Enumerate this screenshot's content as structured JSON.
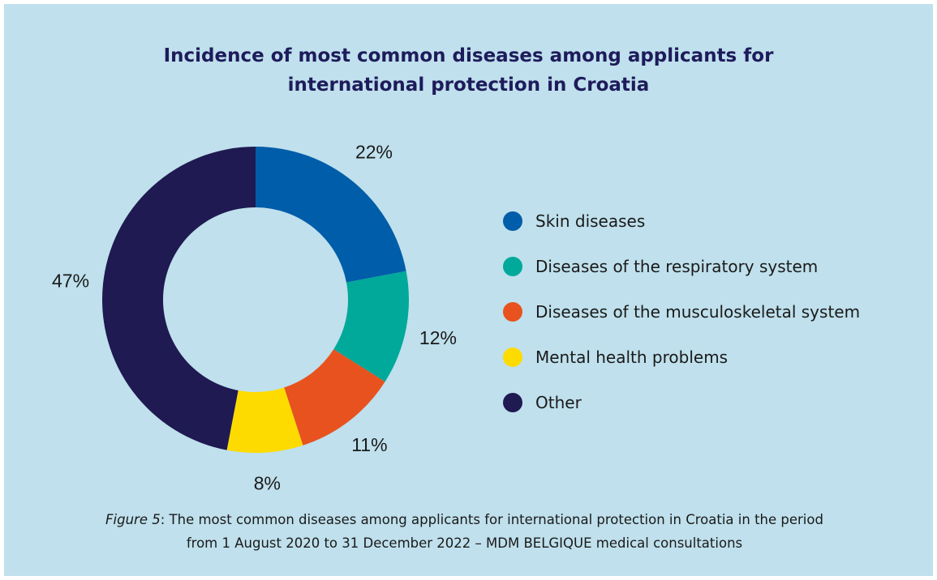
{
  "chart_data": {
    "type": "pie",
    "title": "Incidence of most common diseases among applicants for international protection in Croatia",
    "title_lines": [
      "Incidence of most common diseases among applicants for",
      "international protection in Croatia"
    ],
    "categories": [
      "Skin diseases",
      "Diseases of the respiratory system",
      "Diseases of the musculoskeletal system",
      "Mental health problems",
      "Other"
    ],
    "values": [
      22,
      12,
      11,
      8,
      47
    ],
    "value_labels": [
      "22%",
      "12%",
      "11%",
      "8%",
      "47%"
    ],
    "colors": [
      "#005da9",
      "#00a99a",
      "#e8521e",
      "#fedb00",
      "#1f1a51"
    ],
    "donut": true,
    "legend_position": "right"
  },
  "caption": {
    "figure_label": "Figure 5",
    "line1_rest": ": The most common diseases among applicants for international protection in Croatia in the period",
    "line2": "from 1 August 2020 to 31 December 2022 – MDM BELGIQUE medical consultations"
  },
  "colors": {
    "background": "#bfe0ec",
    "title": "#1e1b5b"
  }
}
